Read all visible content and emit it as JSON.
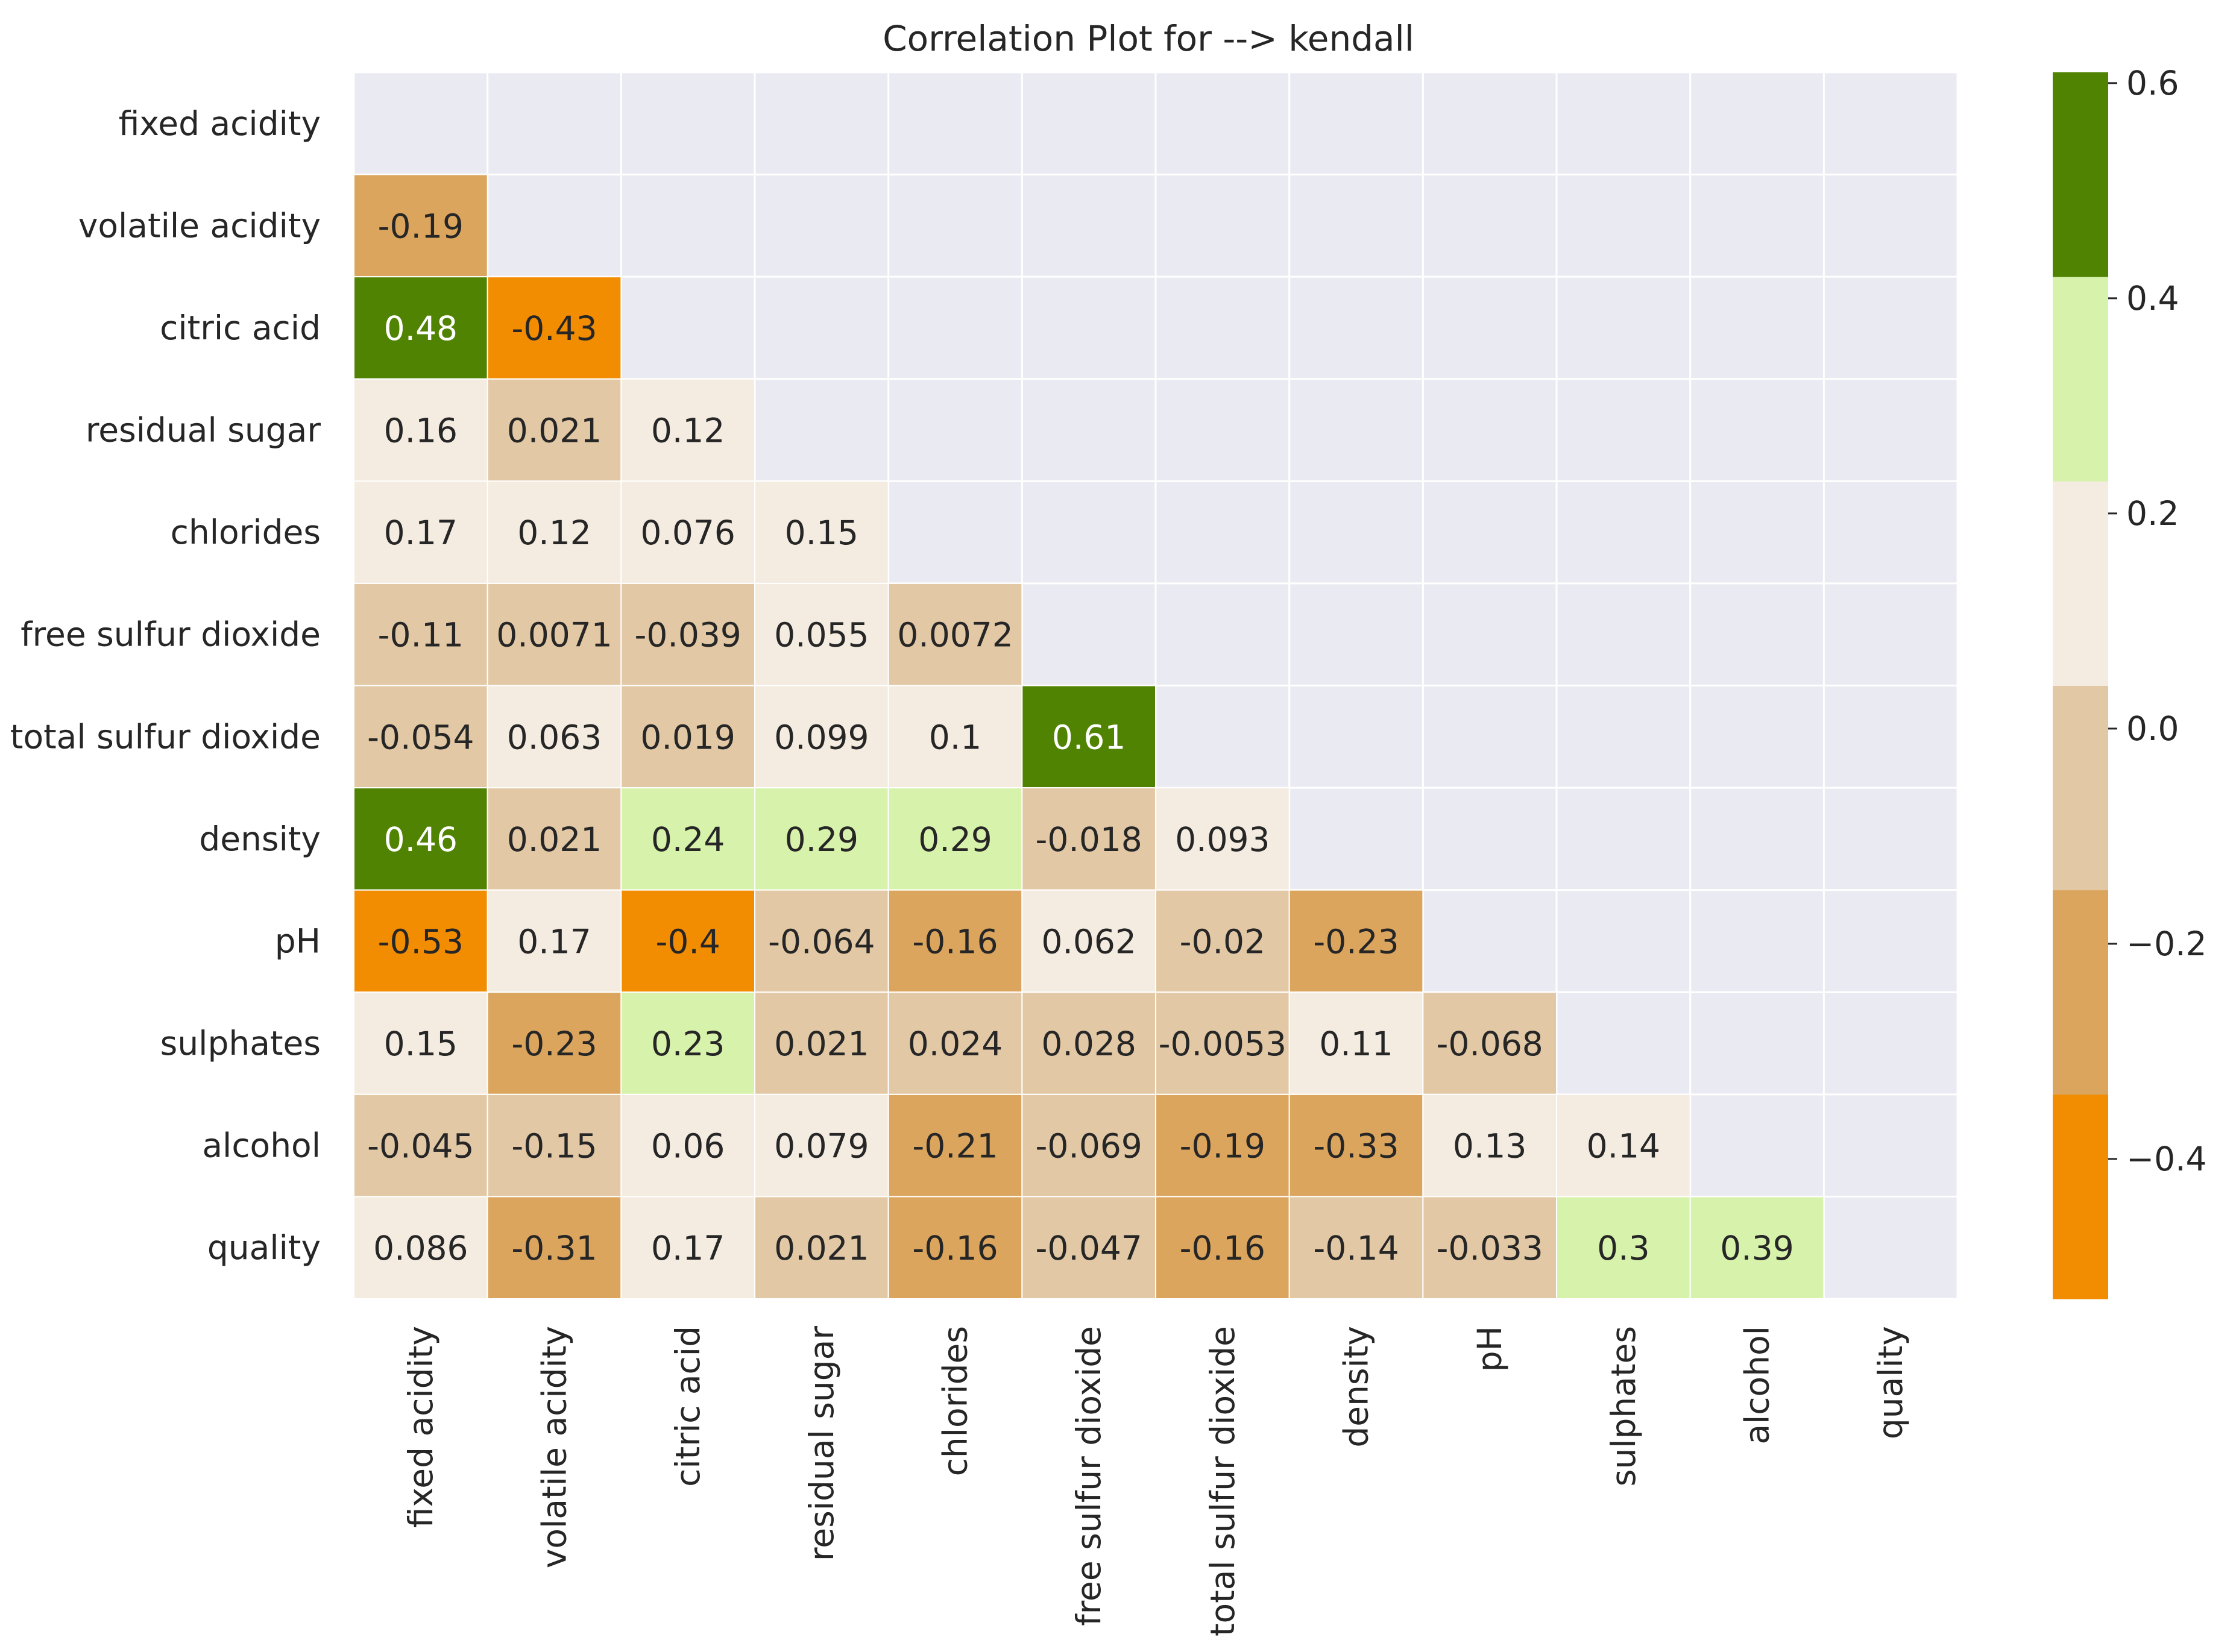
{
  "chart_data": {
    "type": "heatmap",
    "title": "Correlation Plot for --> kendall",
    "variables": [
      "fixed acidity",
      "volatile acidity",
      "citric acid",
      "residual sugar",
      "chlorides",
      "free sulfur dioxide",
      "total sulfur dioxide",
      "density",
      "pH",
      "sulphates",
      "alcohol",
      "quality"
    ],
    "matrix": [
      [
        null,
        null,
        null,
        null,
        null,
        null,
        null,
        null,
        null,
        null,
        null,
        null
      ],
      [
        "-0.19",
        null,
        null,
        null,
        null,
        null,
        null,
        null,
        null,
        null,
        null,
        null
      ],
      [
        "0.48",
        "-0.43",
        null,
        null,
        null,
        null,
        null,
        null,
        null,
        null,
        null,
        null
      ],
      [
        "0.16",
        "0.021",
        "0.12",
        null,
        null,
        null,
        null,
        null,
        null,
        null,
        null,
        null
      ],
      [
        "0.17",
        "0.12",
        "0.076",
        "0.15",
        null,
        null,
        null,
        null,
        null,
        null,
        null,
        null
      ],
      [
        "-0.11",
        "0.0071",
        "-0.039",
        "0.055",
        "0.0072",
        null,
        null,
        null,
        null,
        null,
        null,
        null
      ],
      [
        "-0.054",
        "0.063",
        "0.019",
        "0.099",
        "0.1",
        "0.61",
        null,
        null,
        null,
        null,
        null,
        null
      ],
      [
        "0.46",
        "0.021",
        "0.24",
        "0.29",
        "0.29",
        "-0.018",
        "0.093",
        null,
        null,
        null,
        null,
        null
      ],
      [
        "-0.53",
        "0.17",
        "-0.4",
        "-0.064",
        "-0.16",
        "0.062",
        "-0.02",
        "-0.23",
        null,
        null,
        null,
        null
      ],
      [
        "0.15",
        "-0.23",
        "0.23",
        "0.021",
        "0.024",
        "0.028",
        "-0.0053",
        "0.11",
        "-0.068",
        null,
        null,
        null
      ],
      [
        "-0.045",
        "-0.15",
        "0.06",
        "0.079",
        "-0.21",
        "-0.069",
        "-0.19",
        "-0.33",
        "0.13",
        "0.14",
        null,
        null
      ],
      [
        "0.086",
        "-0.31",
        "0.17",
        "0.021",
        "-0.16",
        "-0.047",
        "-0.16",
        "-0.14",
        "-0.033",
        "0.3",
        "0.39",
        null
      ]
    ],
    "mask": "upper-triangle-and-diagonal",
    "colorbar": {
      "range": [
        -0.53,
        0.61
      ],
      "ticks": [
        {
          "value": 0.6,
          "label": "0.6"
        },
        {
          "value": 0.4,
          "label": "0.4"
        },
        {
          "value": 0.2,
          "label": "0.2"
        },
        {
          "value": 0.0,
          "label": "0.0"
        },
        {
          "value": -0.2,
          "label": "−0.2"
        },
        {
          "value": -0.4,
          "label": "−0.4"
        }
      ],
      "colors": [
        "#f28c00",
        "#dba55e",
        "#e2c8a5",
        "#f5ece1",
        "#d7f2ab",
        "#518302"
      ]
    },
    "background_color": "#eaeaf2",
    "grid": true
  }
}
